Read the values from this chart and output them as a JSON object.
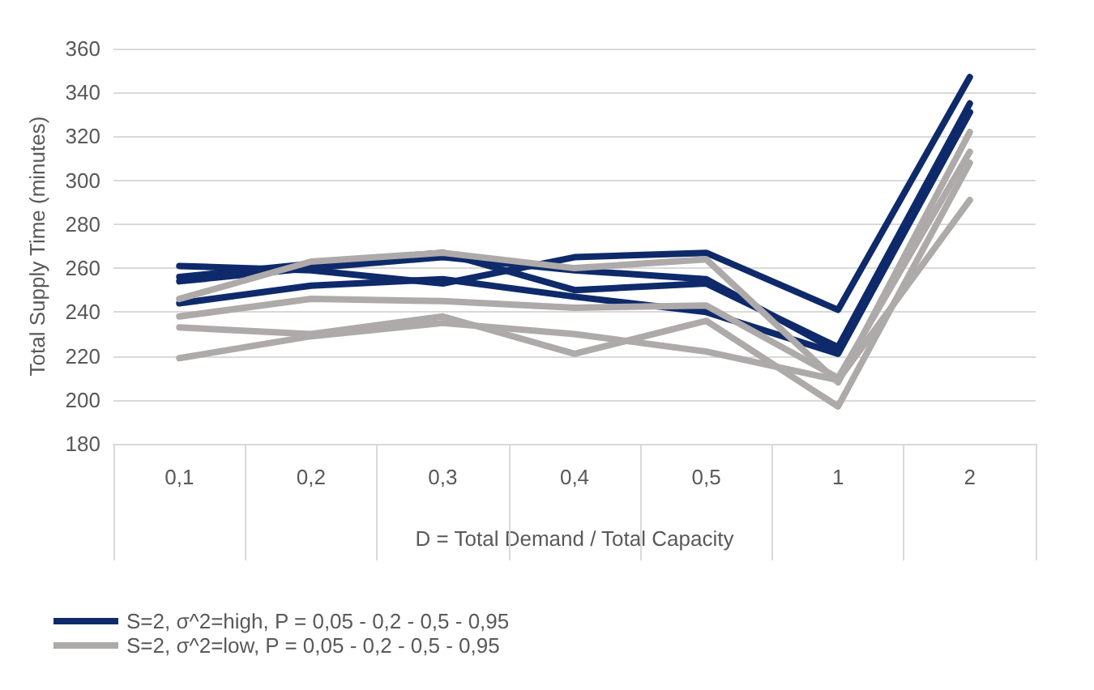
{
  "chart_data": {
    "type": "line",
    "xlabel": "D = Total Demand / Total Capacity",
    "ylabel": "Total Supply Time (minutes)",
    "categories": [
      "0,1",
      "0,2",
      "0,3",
      "0,4",
      "0,5",
      "1",
      "2"
    ],
    "ylim": [
      180,
      360
    ],
    "yticks": [
      180,
      200,
      220,
      240,
      260,
      280,
      300,
      320,
      340,
      360
    ],
    "grid": "y",
    "legend": "bottom left",
    "marker": "none",
    "line_style": "solid",
    "series": [
      {
        "name": "S=2, σ^2=high, P = 0,05 - 0,2 - 0,5 - 0,95",
        "color": "#0e2a6b",
        "values": [
          261,
          259,
          253,
          265,
          267,
          241,
          347
        ]
      },
      {
        "color": "#0e2a6b",
        "values": [
          256,
          262,
          267,
          250,
          253,
          224,
          335
        ]
      },
      {
        "color": "#0e2a6b",
        "values": [
          254,
          260,
          265,
          259,
          255,
          222,
          331
        ]
      },
      {
        "color": "#0e2a6b",
        "values": [
          244,
          252,
          255,
          247,
          240,
          221,
          331
        ]
      },
      {
        "name": "S=2, σ^2=low, P = 0,05 - 0,2 - 0,5 - 0,95",
        "color": "#aeaaaa",
        "values": [
          246,
          263,
          267,
          260,
          264,
          208,
          322
        ]
      },
      {
        "color": "#aeaaaa",
        "values": [
          238,
          246,
          245,
          242,
          243,
          210,
          313
        ]
      },
      {
        "color": "#aeaaaa",
        "values": [
          233,
          230,
          238,
          221,
          236,
          197,
          308
        ]
      },
      {
        "color": "#aeaaaa",
        "values": [
          219,
          229,
          235,
          230,
          222,
          209,
          291
        ]
      }
    ]
  }
}
